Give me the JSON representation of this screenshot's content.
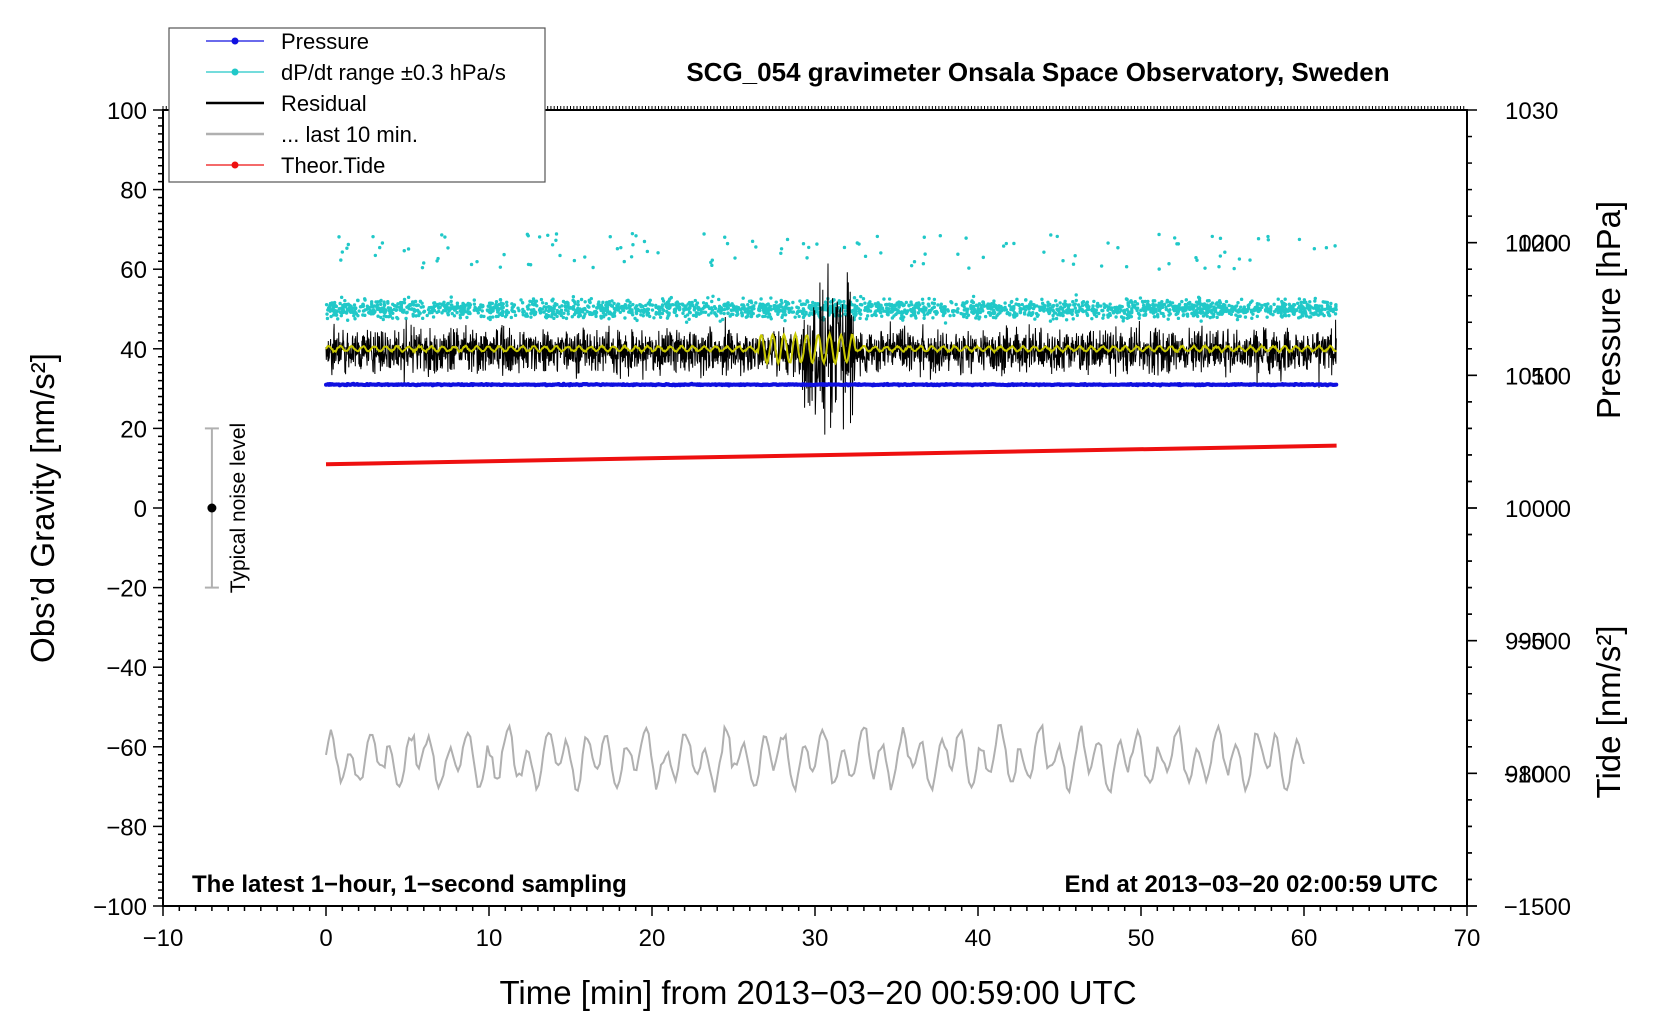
{
  "chart_data": {
    "type": "line",
    "title": "SCG_054 gravimeter Onsala Space Observatory, Sweden",
    "xlabel": "Time [min] from 2013−03−20 00:59:00 UTC",
    "ylabel_left": "Obs’d Gravity [nm/s²]",
    "ylabel_right_top": "Pressure [hPa]",
    "ylabel_right_bottom": "Tide [nm/s²]",
    "xlim": [
      -10,
      70
    ],
    "ylim_left": [
      -100,
      100
    ],
    "ylim_pressure": [
      970,
      1030
    ],
    "ylim_tide": [
      -1500,
      1500
    ],
    "x_ticks": [
      {
        "value": -10,
        "label": "−10"
      },
      {
        "value": 0,
        "label": "0"
      },
      {
        "value": 10,
        "label": "10"
      },
      {
        "value": 20,
        "label": "20"
      },
      {
        "value": 30,
        "label": "30"
      },
      {
        "value": 40,
        "label": "40"
      },
      {
        "value": 50,
        "label": "50"
      },
      {
        "value": 60,
        "label": "60"
      },
      {
        "value": 70,
        "label": "70"
      }
    ],
    "y_ticks_left": [
      {
        "value": 100,
        "label": "100"
      },
      {
        "value": 80,
        "label": "80"
      },
      {
        "value": 60,
        "label": "60"
      },
      {
        "value": 40,
        "label": "40"
      },
      {
        "value": 20,
        "label": "20"
      },
      {
        "value": 0,
        "label": "0"
      },
      {
        "value": -20,
        "label": "−20"
      },
      {
        "value": -40,
        "label": "−40"
      },
      {
        "value": -60,
        "label": "−60"
      },
      {
        "value": -80,
        "label": "−80"
      },
      {
        "value": -100,
        "label": "−100"
      }
    ],
    "pressure_ticks": [
      {
        "value": 1030,
        "label": "1030"
      },
      {
        "value": 1020,
        "label": "1020"
      },
      {
        "value": 1010,
        "label": "1010"
      },
      {
        "value": 1000,
        "label": "1000"
      },
      {
        "value": 990,
        "label": "990"
      },
      {
        "value": 980,
        "label": "980"
      }
    ],
    "tide_ticks": [
      {
        "value": 1000,
        "label": "1000"
      },
      {
        "value": 500,
        "label": "500"
      },
      {
        "value": 0,
        "label": "0"
      },
      {
        "value": -500,
        "label": "−500"
      },
      {
        "value": -1000,
        "label": "−1000"
      },
      {
        "value": -1500,
        "label": "−1500"
      }
    ],
    "legend": [
      {
        "label": "Pressure",
        "color": "#1010e0",
        "marker": true
      },
      {
        "label": "dP/dt range ±0.3 hPa/s",
        "color": "#20c8c8",
        "marker": true
      },
      {
        "label": "Residual",
        "color": "#000000",
        "marker": false
      },
      {
        "label": "... last 10 min.",
        "color": "#b0b0b0",
        "marker": false
      },
      {
        "label": "Theor.Tide",
        "color": "#ee1010",
        "marker": true
      }
    ],
    "legend_position": "top-left",
    "series": [
      {
        "name": "Pressure",
        "axis": "pressure",
        "color": "#1010e0",
        "x_range": [
          0,
          62
        ],
        "level": 1009.3
      },
      {
        "name": "dP/dt range ±0.3 hPa/s",
        "axis": "left",
        "color": "#20c8c8",
        "x_range": [
          0,
          62
        ],
        "center": 50,
        "spread": 4
      },
      {
        "name": "Residual",
        "axis": "left",
        "color": "#000000",
        "x_range": [
          0,
          62
        ],
        "center": 39.5,
        "min": 11,
        "max": 66
      },
      {
        "name": "Residual (smoothed)",
        "axis": "left",
        "color": "#c8c800",
        "x_range": [
          0,
          62
        ],
        "center": 40
      },
      {
        "name": "Theor.Tide",
        "axis": "tide",
        "color": "#ee1010",
        "x": [
          0,
          62
        ],
        "y": [
          165,
          235
        ]
      },
      {
        "name": "... last 10 min.",
        "axis": "left",
        "color": "#b0b0b0",
        "x_range": [
          0,
          60
        ],
        "center": -63
      }
    ],
    "noise_bar": {
      "label": "Typical noise level",
      "x": -7,
      "center": 0,
      "low": -20,
      "high": 20
    },
    "annotations": {
      "bottom_left": "The latest 1−hour, 1−second sampling",
      "bottom_right": "End at 2013−03−20 02:00:59 UTC"
    },
    "grid": false
  }
}
